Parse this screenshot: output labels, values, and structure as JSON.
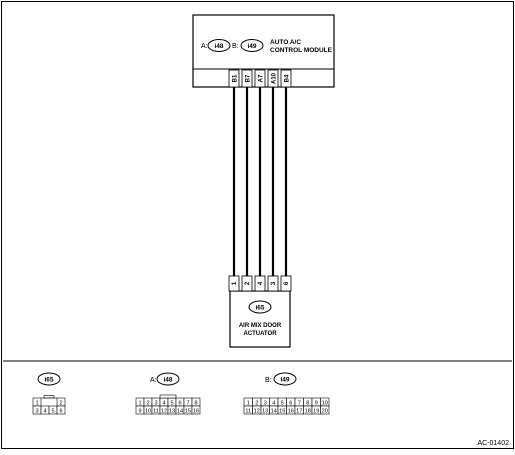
{
  "module": {
    "connector_a_label": "A:",
    "connector_a_id": "i48",
    "connector_b_label": "B:",
    "connector_b_id": "i49",
    "name_line1": "AUTO A/C",
    "name_line2": "CONTROL MODULE",
    "pins": [
      "B1",
      "B7",
      "A7",
      "A10",
      "B4"
    ]
  },
  "actuator": {
    "connector_id": "i65",
    "name_line1": "AIR MIX DOOR",
    "name_line2": "ACTUATOR",
    "pins": [
      "1",
      "2",
      "4",
      "3",
      "6"
    ]
  },
  "legend": {
    "i65": {
      "id": "i65",
      "row1": [
        "1",
        "",
        "2"
      ],
      "row2": [
        "3",
        "4",
        "5",
        "6"
      ]
    },
    "i48": {
      "prefix": "A:",
      "id": "i48",
      "row1": [
        "1",
        "2",
        "3",
        "4",
        "5",
        "6",
        "7",
        "8"
      ],
      "row2": [
        "9",
        "10",
        "11",
        "12",
        "13",
        "14",
        "15",
        "16"
      ]
    },
    "i49": {
      "prefix": "B:",
      "id": "i49",
      "row1": [
        "1",
        "2",
        "3",
        "4",
        "5",
        "6",
        "7",
        "8",
        "9",
        "10"
      ],
      "row2": [
        "11",
        "12",
        "13",
        "14",
        "15",
        "16",
        "17",
        "18",
        "19",
        "20"
      ]
    }
  },
  "footer": {
    "code": "AC-01402"
  }
}
